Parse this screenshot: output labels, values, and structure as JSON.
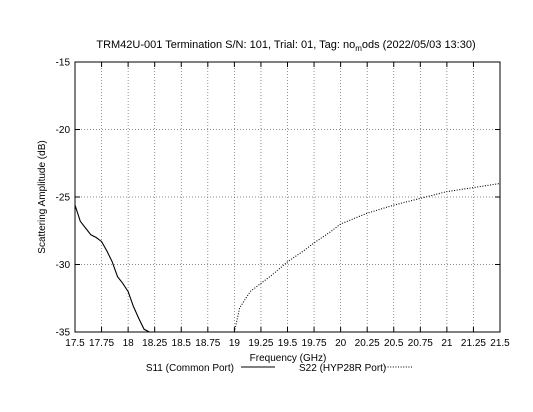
{
  "chart_data": {
    "type": "line",
    "title": "TRM42U-001 Termination S/N: 101, Trial: 01, Tag: no_mods (2022/05/03 13:30)",
    "title_parts": {
      "before_subscript": "TRM42U-001 Termination S/N: 101, Trial: 01, Tag: no",
      "subscript": "m",
      "after_subscript": "ods (2022/05/03 13:30)"
    },
    "xlabel": "Frequency (GHz)",
    "ylabel": "Scattering Amplitude (dB)",
    "xlim": [
      17.5,
      21.5
    ],
    "ylim": [
      -35,
      -15
    ],
    "grid": true,
    "legend_position": "bottom",
    "xticks": [
      "17.5",
      "17.75",
      "18",
      "18.25",
      "18.5",
      "18.75",
      "19",
      "19.25",
      "19.5",
      "19.75",
      "20",
      "20.25",
      "20.5",
      "20.75",
      "21",
      "21.25",
      "21.5"
    ],
    "yticks": [
      "-15",
      "-20",
      "-25",
      "-30",
      "-35"
    ],
    "series": [
      {
        "name": "S11 (Common Port)",
        "style": "solid",
        "x": [
          17.5,
          17.55,
          17.6,
          17.65,
          17.7,
          17.75,
          17.8,
          17.85,
          17.9,
          17.95,
          18.0,
          18.05,
          18.1,
          18.15,
          18.2
        ],
        "y": [
          -25.6,
          -26.8,
          -27.3,
          -27.8,
          -28.0,
          -28.3,
          -29.0,
          -29.8,
          -30.9,
          -31.4,
          -32.0,
          -33.1,
          -34.0,
          -34.8,
          -35.0
        ]
      },
      {
        "name": "S22 (HYP28R Port)",
        "style": "dotted",
        "x": [
          19.0,
          19.05,
          19.1,
          19.15,
          19.25,
          19.35,
          19.5,
          19.65,
          19.75,
          19.9,
          20.0,
          20.25,
          20.5,
          20.75,
          21.0,
          21.25,
          21.5
        ],
        "y": [
          -35.0,
          -33.2,
          -32.6,
          -32.0,
          -31.4,
          -30.8,
          -29.8,
          -29.0,
          -28.4,
          -27.6,
          -27.0,
          -26.2,
          -25.6,
          -25.1,
          -24.6,
          -24.3,
          -24.0
        ]
      }
    ]
  }
}
